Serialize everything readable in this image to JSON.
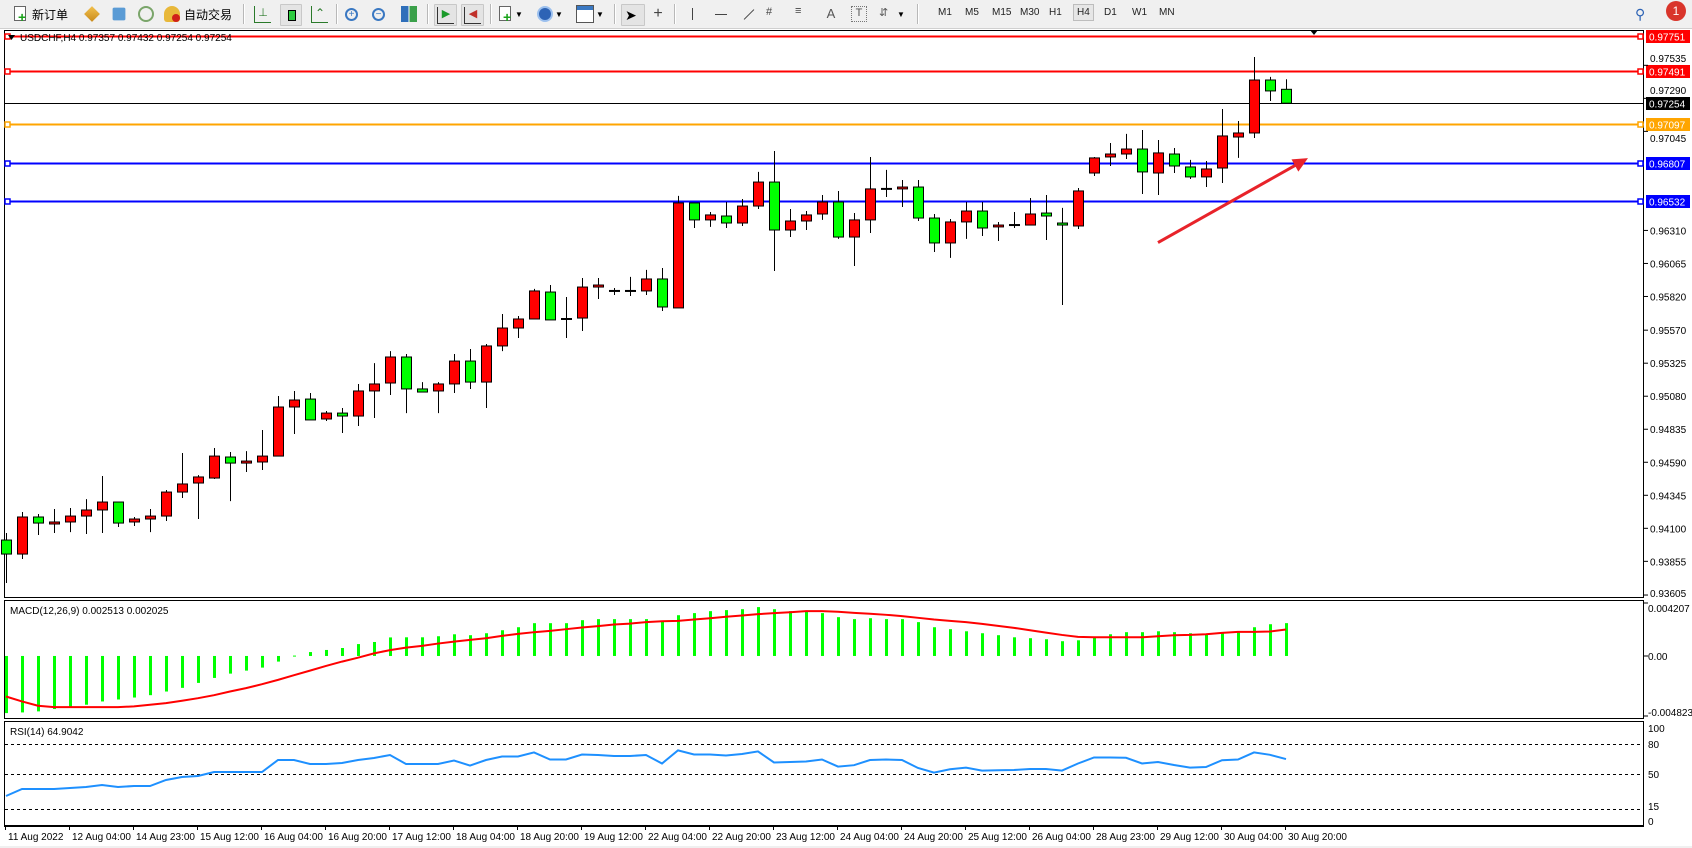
{
  "toolbar": {
    "new_order_label": "新订单",
    "auto_trading_label": "自动交易",
    "icons": [
      "new-order-icon",
      "market-watch-icon",
      "data-window-icon",
      "navigator-icon",
      "auto-trading-icon",
      "bar-chart-icon",
      "candlestick-icon",
      "line-chart-icon",
      "zoom-in-icon",
      "zoom-out-icon",
      "tile-windows-icon",
      "auto-scroll-icon",
      "chart-shift-icon",
      "indicators-icon",
      "periods-icon",
      "templates-icon",
      "cursor-icon",
      "crosshair-icon",
      "vertical-line-icon",
      "horizontal-line-icon",
      "trendline-icon",
      "equidistant-channel-icon",
      "fibonacci-icon",
      "text-icon",
      "text-label-icon",
      "arrows-icon",
      "search-icon",
      "notifications-icon"
    ],
    "timeframes": [
      "M1",
      "M5",
      "M15",
      "M30",
      "H1",
      "H4",
      "D1",
      "W1",
      "MN"
    ],
    "active_timeframe": "H4",
    "notification_count": "1"
  },
  "chart": {
    "symbol_readout": "USDCHF,H4  0.97357 0.97432 0.97254 0.97254",
    "colors": {
      "bull": "#ff0000",
      "bear": "#00ff00",
      "grid_bg": "#ffffff",
      "axis": "#000000"
    },
    "price_axis_labels": [
      "0.97535",
      "0.97290",
      "0.97045",
      "0.96310",
      "0.96065",
      "0.95820",
      "0.95570",
      "0.95325",
      "0.95080",
      "0.94835",
      "0.94590",
      "0.94345",
      "0.94100",
      "0.93855",
      "0.93605"
    ],
    "horizontal_lines": [
      {
        "price": "0.97751",
        "color": "#ff0000"
      },
      {
        "price": "0.97491",
        "color": "#ff0000"
      },
      {
        "price": "0.97254",
        "color": "#000000",
        "current": true
      },
      {
        "price": "0.97097",
        "color": "#ffa500"
      },
      {
        "price": "0.96807",
        "color": "#0000ff"
      },
      {
        "price": "0.96532",
        "color": "#0000ff"
      }
    ],
    "trend_arrow": {
      "color": "#e8232a",
      "from": {
        "candle": 72,
        "price": 0.9622
      },
      "to": {
        "candle": 82,
        "price": 0.96846
      }
    },
    "time_axis_labels": [
      "11 Aug 2022",
      "12 Aug 04:00",
      "14 Aug 23:00",
      "15 Aug 12:00",
      "16 Aug 04:00",
      "16 Aug 20:00",
      "17 Aug 12:00",
      "18 Aug 04:00",
      "18 Aug 20:00",
      "19 Aug 12:00",
      "22 Aug 04:00",
      "22 Aug 20:00",
      "23 Aug 12:00",
      "24 Aug 04:00",
      "24 Aug 20:00",
      "25 Aug 12:00",
      "26 Aug 04:00",
      "28 Aug 23:00",
      "29 Aug 12:00",
      "30 Aug 04:00",
      "30 Aug 20:00"
    ]
  },
  "macd": {
    "label": "MACD(12,26,9) 0.002513 0.002025",
    "axis_labels": [
      "0.004207",
      "0.00",
      "-0.004823"
    ],
    "colors": {
      "histogram": "#00ff00",
      "signal": "#ff0000"
    }
  },
  "rsi": {
    "label": "RSI(14) 64.9042",
    "axis_labels": [
      "100",
      "80",
      "50",
      "15",
      "0"
    ],
    "levels": [
      80,
      50,
      15
    ],
    "color": "#1e90ff"
  },
  "chart_data": [
    {
      "type": "candlestick",
      "title": "USDCHF,H4",
      "ylim": [
        0.93583,
        0.97797
      ],
      "x": "candle index, 4-hour bars from 11 Aug 2022 to 30 Aug 20:00",
      "ohlc": [
        [
          0.94013,
          0.94065,
          0.93694,
          0.93909
        ],
        [
          0.93909,
          0.94221,
          0.93872,
          0.94184
        ],
        [
          0.94184,
          0.94206,
          0.9405,
          0.94139
        ],
        [
          0.94132,
          0.94243,
          0.94065,
          0.94147
        ],
        [
          0.94147,
          0.94251,
          0.94072,
          0.94191
        ],
        [
          0.94191,
          0.94317,
          0.94058,
          0.94236
        ],
        [
          0.94236,
          0.94488,
          0.94065,
          0.94295
        ],
        [
          0.94295,
          0.94295,
          0.9411,
          0.94139
        ],
        [
          0.94147,
          0.94184,
          0.94117,
          0.94169
        ],
        [
          0.94169,
          0.94243,
          0.94072,
          0.94191
        ],
        [
          0.94191,
          0.94384,
          0.94154,
          0.94369
        ],
        [
          0.94369,
          0.94659,
          0.94325,
          0.94429
        ],
        [
          0.94436,
          0.94495,
          0.94169,
          0.94481
        ],
        [
          0.94473,
          0.94696,
          0.94466,
          0.94636
        ],
        [
          0.94629,
          0.94666,
          0.94302,
          0.94584
        ],
        [
          0.94584,
          0.94673,
          0.94518,
          0.94599
        ],
        [
          0.94592,
          0.94829,
          0.94533,
          0.94636
        ],
        [
          0.94636,
          0.95082,
          0.94636,
          0.95
        ],
        [
          0.95,
          0.95119,
          0.948,
          0.95052
        ],
        [
          0.95059,
          0.95104,
          0.94904,
          0.94904
        ],
        [
          0.94911,
          0.9497,
          0.94896,
          0.94955
        ],
        [
          0.94955,
          0.94993,
          0.94807,
          0.94933
        ],
        [
          0.94933,
          0.95171,
          0.94859,
          0.95119
        ],
        [
          0.95119,
          0.95326,
          0.94918,
          0.95171
        ],
        [
          0.95178,
          0.95415,
          0.95089,
          0.95371
        ],
        [
          0.95371,
          0.95393,
          0.94955,
          0.95134
        ],
        [
          0.95134,
          0.95185,
          0.95111,
          0.95111
        ],
        [
          0.95119,
          0.95185,
          0.94955,
          0.95171
        ],
        [
          0.95171,
          0.95393,
          0.95104,
          0.95341
        ],
        [
          0.95341,
          0.9543,
          0.95134,
          0.95185
        ],
        [
          0.95185,
          0.95467,
          0.94993,
          0.95453
        ],
        [
          0.95453,
          0.9569,
          0.95415,
          0.95586
        ],
        [
          0.95586,
          0.95675,
          0.95512,
          0.95653
        ],
        [
          0.95653,
          0.95876,
          0.95653,
          0.95861
        ],
        [
          0.95853,
          0.95905,
          0.95646,
          0.95646
        ],
        [
          0.95653,
          0.95816,
          0.95512,
          0.95653
        ],
        [
          0.9566,
          0.95957,
          0.95564,
          0.9589
        ],
        [
          0.9589,
          0.95957,
          0.95801,
          0.95905
        ],
        [
          0.95861,
          0.95883,
          0.95831,
          0.95861
        ],
        [
          0.95861,
          0.95965,
          0.95824,
          0.95861
        ],
        [
          0.95861,
          0.96017,
          0.95831,
          0.9595
        ],
        [
          0.9595,
          0.96031,
          0.95712,
          0.95742
        ],
        [
          0.95735,
          0.96566,
          0.95735,
          0.96514
        ],
        [
          0.96514,
          0.96514,
          0.96328,
          0.96388
        ],
        [
          0.96388,
          0.96447,
          0.96336,
          0.96425
        ],
        [
          0.96417,
          0.96521,
          0.96328,
          0.96365
        ],
        [
          0.96365,
          0.96543,
          0.96343,
          0.96491
        ],
        [
          0.96491,
          0.96744,
          0.96469,
          0.96669
        ],
        [
          0.96669,
          0.96899,
          0.96009,
          0.96313
        ],
        [
          0.96313,
          0.96469,
          0.96261,
          0.9638
        ],
        [
          0.9638,
          0.96454,
          0.96313,
          0.96425
        ],
        [
          0.96432,
          0.96573,
          0.96388,
          0.96521
        ],
        [
          0.96521,
          0.96603,
          0.96247,
          0.96261
        ],
        [
          0.96261,
          0.96439,
          0.96046,
          0.96388
        ],
        [
          0.96388,
          0.96855,
          0.96291,
          0.96618
        ],
        [
          0.96618,
          0.96759,
          0.96558,
          0.96618
        ],
        [
          0.96618,
          0.96684,
          0.96484,
          0.96632
        ],
        [
          0.96632,
          0.96684,
          0.9638,
          0.96402
        ],
        [
          0.96402,
          0.96432,
          0.9615,
          0.96217
        ],
        [
          0.96217,
          0.96395,
          0.96106,
          0.96373
        ],
        [
          0.96373,
          0.96521,
          0.96247,
          0.96454
        ],
        [
          0.96454,
          0.96521,
          0.96269,
          0.96328
        ],
        [
          0.96336,
          0.96373,
          0.96232,
          0.9635
        ],
        [
          0.9635,
          0.96447,
          0.96328,
          0.9635
        ],
        [
          0.9635,
          0.96551,
          0.9635,
          0.96432
        ],
        [
          0.96439,
          0.96573,
          0.96239,
          0.96417
        ],
        [
          0.96365,
          0.96477,
          0.95757,
          0.9635
        ],
        [
          0.96343,
          0.96625,
          0.96321,
          0.96603
        ],
        [
          0.96736,
          0.96855,
          0.96714,
          0.96848
        ],
        [
          0.96855,
          0.96959,
          0.96788,
          0.96877
        ],
        [
          0.96877,
          0.97026,
          0.9684,
          0.96914
        ],
        [
          0.96914,
          0.97055,
          0.9658,
          0.96744
        ],
        [
          0.96736,
          0.96981,
          0.96573,
          0.96885
        ],
        [
          0.96877,
          0.96922,
          0.96736,
          0.96788
        ],
        [
          0.96781,
          0.96833,
          0.96692,
          0.96707
        ],
        [
          0.96707,
          0.96825,
          0.96632,
          0.96766
        ],
        [
          0.96773,
          0.97211,
          0.96662,
          0.97011
        ],
        [
          0.97003,
          0.97122,
          0.96848,
          0.97033
        ],
        [
          0.97033,
          0.97597,
          0.96996,
          0.97426
        ],
        [
          0.97426,
          0.97449,
          0.9727,
          0.97345
        ],
        [
          0.97357,
          0.97432,
          0.97254,
          0.97254
        ]
      ]
    },
    {
      "type": "bar",
      "title": "MACD(12,26,9)",
      "ylim": [
        -0.004823,
        0.004207
      ],
      "series": [
        {
          "name": "MACD",
          "type": "bar",
          "values": [
            -0.00437,
            -0.00432,
            -0.00424,
            -0.00406,
            -0.00391,
            -0.00373,
            -0.00348,
            -0.00333,
            -0.00318,
            -0.003,
            -0.00272,
            -0.00244,
            -0.00206,
            -0.00168,
            -0.00135,
            -0.00112,
            -0.00089,
            -0.00043,
            3e-05,
            0.0003,
            0.00046,
            0.00061,
            0.00091,
            0.00107,
            0.00142,
            0.00143,
            0.00143,
            0.00151,
            0.00166,
            0.00159,
            0.00174,
            0.00197,
            0.0022,
            0.00251,
            0.00251,
            0.00251,
            0.00274,
            0.00282,
            0.00282,
            0.00282,
            0.00282,
            0.00266,
            0.00312,
            0.00328,
            0.00343,
            0.00351,
            0.00358,
            0.00374,
            0.00358,
            0.00343,
            0.00343,
            0.00328,
            0.00297,
            0.00282,
            0.00289,
            0.00282,
            0.00282,
            0.00259,
            0.0022,
            0.00205,
            0.00189,
            0.00174,
            0.00159,
            0.00143,
            0.00136,
            0.00128,
            0.00113,
            0.0012,
            0.00143,
            0.00166,
            0.00182,
            0.00182,
            0.00189,
            0.00182,
            0.00174,
            0.00166,
            0.00174,
            0.00189,
            0.0022,
            0.00243,
            0.002513
          ]
        },
        {
          "name": "Signal",
          "type": "line",
          "values": [
            -0.0031,
            -0.00348,
            -0.00381,
            -0.00391,
            -0.00391,
            -0.00391,
            -0.00391,
            -0.00391,
            -0.00386,
            -0.00373,
            -0.00361,
            -0.00343,
            -0.00323,
            -0.003,
            -0.00272,
            -0.00246,
            -0.00216,
            -0.00183,
            -0.00147,
            -0.00112,
            -0.00076,
            -0.00043,
            -0.00013,
            0.0002,
            0.00045,
            0.00064,
            0.00077,
            0.00095,
            0.0011,
            0.00123,
            0.00136,
            0.00154,
            0.00169,
            0.00182,
            0.00192,
            0.00205,
            0.00218,
            0.00228,
            0.00241,
            0.00248,
            0.00259,
            0.00266,
            0.00269,
            0.00279,
            0.00289,
            0.003,
            0.0031,
            0.0032,
            0.00328,
            0.00335,
            0.00343,
            0.00343,
            0.00338,
            0.0033,
            0.00323,
            0.00315,
            0.00305,
            0.00292,
            0.00279,
            0.00269,
            0.00259,
            0.00246,
            0.0023,
            0.00215,
            0.00197,
            0.00179,
            0.00161,
            0.00146,
            0.00143,
            0.00143,
            0.00143,
            0.00143,
            0.00151,
            0.00159,
            0.00161,
            0.00166,
            0.00177,
            0.00184,
            0.00184,
            0.00187,
            0.002025
          ]
        }
      ]
    },
    {
      "type": "line",
      "title": "RSI(14)",
      "ylim": [
        0,
        100
      ],
      "values": [
        28,
        35,
        35,
        35,
        36,
        37,
        39,
        37,
        38,
        38,
        44,
        47,
        48,
        52,
        52,
        52,
        52,
        64,
        64,
        60,
        60,
        61,
        64,
        66,
        69,
        60,
        60,
        60,
        63.5,
        58.4,
        64,
        67.5,
        67.5,
        71.6,
        64.5,
        64.5,
        69.5,
        69,
        68,
        68,
        69,
        60.5,
        73.6,
        69.5,
        69.5,
        68.5,
        70,
        72.6,
        61.5,
        62,
        62.5,
        64.5,
        57.4,
        58.8,
        64,
        64.5,
        64,
        56,
        51.4,
        54.7,
        56.4,
        53.4,
        53.7,
        54,
        55,
        55,
        53.4,
        60.5,
        66.5,
        66.5,
        66.2,
        60.5,
        62,
        59,
        56.4,
        57,
        63.8,
        64.5,
        71.6,
        69.2,
        64.9042
      ]
    }
  ]
}
